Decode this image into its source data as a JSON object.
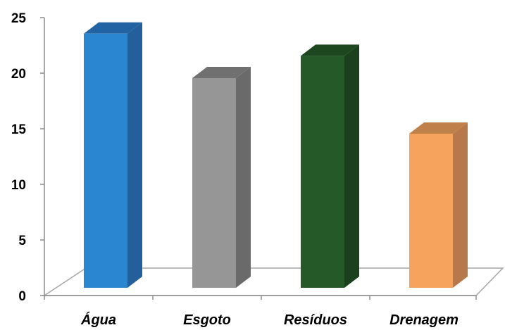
{
  "chart_data": {
    "type": "bar",
    "style": "3d-column",
    "categories": [
      "Água",
      "Esgoto",
      "Resíduos",
      "Drenagem"
    ],
    "values": [
      24,
      20,
      22,
      15
    ],
    "colors": [
      "#2a86d0",
      "#969696",
      "#255a28",
      "#f5a35d"
    ],
    "side_colors": [
      "#23609b",
      "#6a6a6a",
      "#1b401d",
      "#b8794a"
    ],
    "top_colors": [
      "#2163a3",
      "#707070",
      "#1d471f",
      "#c0804a"
    ],
    "ylim": [
      0,
      25
    ],
    "yticks": [
      "0",
      "5",
      "10",
      "15",
      "20",
      "25"
    ],
    "grid": false
  }
}
